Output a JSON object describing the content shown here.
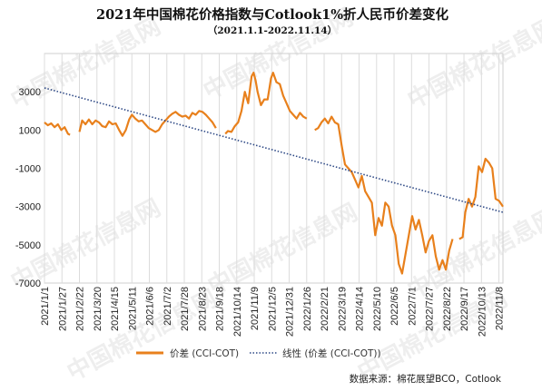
{
  "chart_data": {
    "type": "line",
    "title": "2021年中国棉花价格指数与Cotlook1%折人民币价差变化",
    "subtitle": "（2021.1.1-2022.11.14）",
    "x_range": [
      "2021-01-01",
      "2022-11-14"
    ],
    "ylim": [
      -7000,
      5000
    ],
    "yticks": [
      3000,
      1000,
      -1000,
      -3000,
      -5000,
      -7000
    ],
    "xtick_labels": [
      "2021/1/1",
      "2021/1/27",
      "2021/2/22",
      "2021/3/20",
      "2021/4/15",
      "2021/5/11",
      "2021/6/6",
      "2021/7/2",
      "2021/7/28",
      "2021/8/23",
      "2021/9/18",
      "2021/10/14",
      "2021/11/9",
      "2021/12/5",
      "2021/12/31",
      "2022/1/26",
      "2022/2/21",
      "2022/3/19",
      "2022/4/14",
      "2022/5/10",
      "2022/6/5",
      "2022/7/1",
      "2022/7/27",
      "2022/8/22",
      "2022/9/17",
      "2022/10/13",
      "2022/11/8"
    ],
    "grid": "vertical",
    "legend": "bottom",
    "series": [
      {
        "name": "价差 (CCI-COT)",
        "color": "#E8801C",
        "points": [
          [
            "2021-01-01",
            1400
          ],
          [
            "2021-01-06",
            1250
          ],
          [
            "2021-01-11",
            1350
          ],
          [
            "2021-01-16",
            1150
          ],
          [
            "2021-01-21",
            1300
          ],
          [
            "2021-01-26",
            1000
          ],
          [
            "2021-01-31",
            1150
          ],
          [
            "2021-02-05",
            800
          ],
          [
            "2021-02-08",
            750
          ],
          [
            "2021-02-22",
            900
          ],
          [
            "2021-02-26",
            1500
          ],
          [
            "2021-03-03",
            1300
          ],
          [
            "2021-03-08",
            1550
          ],
          [
            "2021-03-13",
            1300
          ],
          [
            "2021-03-18",
            1500
          ],
          [
            "2021-03-23",
            1400
          ],
          [
            "2021-03-28",
            1200
          ],
          [
            "2021-04-02",
            1150
          ],
          [
            "2021-04-07",
            1450
          ],
          [
            "2021-04-12",
            1300
          ],
          [
            "2021-04-17",
            1350
          ],
          [
            "2021-04-22",
            1000
          ],
          [
            "2021-04-27",
            700
          ],
          [
            "2021-05-02",
            1000
          ],
          [
            "2021-05-07",
            1550
          ],
          [
            "2021-05-11",
            1800
          ],
          [
            "2021-05-16",
            1600
          ],
          [
            "2021-05-21",
            1450
          ],
          [
            "2021-05-26",
            1500
          ],
          [
            "2021-05-31",
            1300
          ],
          [
            "2021-06-05",
            1100
          ],
          [
            "2021-06-10",
            1000
          ],
          [
            "2021-06-15",
            900
          ],
          [
            "2021-06-20",
            1000
          ],
          [
            "2021-06-25",
            1300
          ],
          [
            "2021-06-30",
            1500
          ],
          [
            "2021-07-05",
            1700
          ],
          [
            "2021-07-10",
            1850
          ],
          [
            "2021-07-15",
            1950
          ],
          [
            "2021-07-20",
            1800
          ],
          [
            "2021-07-25",
            1700
          ],
          [
            "2021-07-30",
            1750
          ],
          [
            "2021-08-04",
            1600
          ],
          [
            "2021-08-09",
            1900
          ],
          [
            "2021-08-14",
            1800
          ],
          [
            "2021-08-19",
            2000
          ],
          [
            "2021-08-24",
            1950
          ],
          [
            "2021-08-29",
            1800
          ],
          [
            "2021-09-03",
            1600
          ],
          [
            "2021-09-08",
            1400
          ],
          [
            "2021-09-13",
            1100
          ],
          [
            "2021-09-27",
            800
          ],
          [
            "2021-10-01",
            950
          ],
          [
            "2021-10-06",
            900
          ],
          [
            "2021-10-11",
            1200
          ],
          [
            "2021-10-16",
            1400
          ],
          [
            "2021-10-21",
            2000
          ],
          [
            "2021-10-26",
            3000
          ],
          [
            "2021-10-31",
            2400
          ],
          [
            "2021-11-05",
            3800
          ],
          [
            "2021-11-08",
            4000
          ],
          [
            "2021-11-11",
            3600
          ],
          [
            "2021-11-14",
            3000
          ],
          [
            "2021-11-19",
            2300
          ],
          [
            "2021-11-24",
            2600
          ],
          [
            "2021-11-29",
            2600
          ],
          [
            "2021-12-04",
            3700
          ],
          [
            "2021-12-07",
            4000
          ],
          [
            "2021-12-12",
            3500
          ],
          [
            "2021-12-17",
            3400
          ],
          [
            "2021-12-22",
            2800
          ],
          [
            "2021-12-27",
            2400
          ],
          [
            "2022-01-01",
            2000
          ],
          [
            "2022-01-06",
            1800
          ],
          [
            "2022-01-11",
            1600
          ],
          [
            "2022-01-16",
            1900
          ],
          [
            "2022-01-21",
            1700
          ],
          [
            "2022-01-26",
            1600
          ],
          [
            "2022-02-07",
            1000
          ],
          [
            "2022-02-12",
            1100
          ],
          [
            "2022-02-17",
            1400
          ],
          [
            "2022-02-22",
            1600
          ],
          [
            "2022-02-27",
            1350
          ],
          [
            "2022-03-04",
            1700
          ],
          [
            "2022-03-09",
            1400
          ],
          [
            "2022-03-14",
            1300
          ],
          [
            "2022-03-19",
            200
          ],
          [
            "2022-03-24",
            -800
          ],
          [
            "2022-03-29",
            -1000
          ],
          [
            "2022-04-03",
            -1200
          ],
          [
            "2022-04-08",
            -1600
          ],
          [
            "2022-04-13",
            -2000
          ],
          [
            "2022-04-18",
            -1400
          ],
          [
            "2022-04-23",
            -2200
          ],
          [
            "2022-04-28",
            -2500
          ],
          [
            "2022-05-03",
            -2800
          ],
          [
            "2022-05-08",
            -4500
          ],
          [
            "2022-05-13",
            -3600
          ],
          [
            "2022-05-18",
            -4000
          ],
          [
            "2022-05-23",
            -2800
          ],
          [
            "2022-05-28",
            -3000
          ],
          [
            "2022-06-02",
            -4000
          ],
          [
            "2022-06-07",
            -4500
          ],
          [
            "2022-06-12",
            -6000
          ],
          [
            "2022-06-17",
            -6500
          ],
          [
            "2022-06-22",
            -5500
          ],
          [
            "2022-06-27",
            -4500
          ],
          [
            "2022-07-02",
            -3500
          ],
          [
            "2022-07-07",
            -4200
          ],
          [
            "2022-07-12",
            -3700
          ],
          [
            "2022-07-17",
            -4500
          ],
          [
            "2022-07-22",
            -5400
          ],
          [
            "2022-07-27",
            -4800
          ],
          [
            "2022-08-01",
            -4500
          ],
          [
            "2022-08-06",
            -5600
          ],
          [
            "2022-08-11",
            -6300
          ],
          [
            "2022-08-16",
            -5800
          ],
          [
            "2022-08-21",
            -6300
          ],
          [
            "2022-08-26",
            -5300
          ],
          [
            "2022-08-31",
            -4700
          ],
          [
            "2022-09-10",
            -4700
          ],
          [
            "2022-09-15",
            -4600
          ],
          [
            "2022-09-19",
            -3300
          ],
          [
            "2022-09-24",
            -2600
          ],
          [
            "2022-09-29",
            -3000
          ],
          [
            "2022-10-04",
            -2500
          ],
          [
            "2022-10-09",
            -900
          ],
          [
            "2022-10-14",
            -1200
          ],
          [
            "2022-10-19",
            -500
          ],
          [
            "2022-10-24",
            -700
          ],
          [
            "2022-10-29",
            -1000
          ],
          [
            "2022-11-03",
            -2600
          ],
          [
            "2022-11-08",
            -2700
          ],
          [
            "2022-11-14",
            -3000
          ]
        ]
      },
      {
        "name": "线性 (价差 (CCI-COT))",
        "color": "#2F4A86",
        "points": [
          [
            "2021-01-01",
            3200
          ],
          [
            "2022-11-14",
            -3300
          ]
        ]
      }
    ],
    "source": "数据来源：棉花展望BCO，Cotlook",
    "watermark": "中国棉花信息网"
  }
}
